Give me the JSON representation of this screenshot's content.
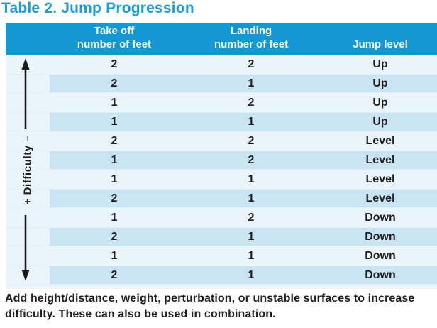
{
  "title": "Table 2. Jump Progression",
  "colors": {
    "accent_blue": "#1597d3",
    "title_blue": "#1b9cd8",
    "row_light": "#e9f4fb",
    "row_stripe": "#c9e4f3",
    "text_dark": "#231f20",
    "header_text": "#ffffff",
    "arrow_black": "#1a1a1a"
  },
  "difficulty_axis": {
    "label": "+ Difficulty –",
    "top_symbol": "–",
    "bottom_symbol": "+",
    "icon": "double-headed-vertical-arrow"
  },
  "table": {
    "columns": [
      {
        "line1": "Take off",
        "line2": "number of feet"
      },
      {
        "line1": "Landing",
        "line2": "number of feet"
      },
      {
        "line1": "Jump level"
      }
    ],
    "rows": [
      {
        "takeoff": "2",
        "landing": "2",
        "jump_level": "Up"
      },
      {
        "takeoff": "2",
        "landing": "1",
        "jump_level": "Up"
      },
      {
        "takeoff": "1",
        "landing": "2",
        "jump_level": "Up"
      },
      {
        "takeoff": "1",
        "landing": "1",
        "jump_level": "Up"
      },
      {
        "takeoff": "2",
        "landing": "2",
        "jump_level": "Level"
      },
      {
        "takeoff": "1",
        "landing": "2",
        "jump_level": "Level"
      },
      {
        "takeoff": "1",
        "landing": "1",
        "jump_level": "Level"
      },
      {
        "takeoff": "2",
        "landing": "1",
        "jump_level": "Level"
      },
      {
        "takeoff": "1",
        "landing": "2",
        "jump_level": "Down"
      },
      {
        "takeoff": "2",
        "landing": "1",
        "jump_level": "Down"
      },
      {
        "takeoff": "1",
        "landing": "1",
        "jump_level": "Down"
      },
      {
        "takeoff": "2",
        "landing": "1",
        "jump_level": "Down"
      }
    ]
  },
  "footnote": "Add height/distance, weight, perturbation, or unstable surfaces to increase difficulty. These can also be used in combination."
}
